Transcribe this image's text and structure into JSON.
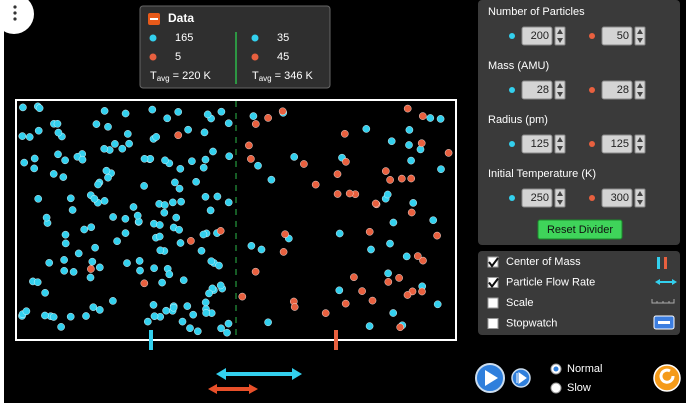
{
  "data_panel": {
    "title": "Data",
    "sides": [
      {
        "counts": [
          165,
          5
        ],
        "temperature": {
          "symbol": "T",
          "subscript": "avg",
          "text": "= 220 K"
        }
      },
      {
        "counts": [
          35,
          45
        ],
        "temperature": {
          "symbol": "T",
          "subscript": "avg",
          "text": "= 346 K"
        }
      }
    ]
  },
  "controls": [
    {
      "label": "Number of Particles",
      "values": [
        200,
        50
      ]
    },
    {
      "label": "Mass (AMU)",
      "values": [
        28,
        28
      ]
    },
    {
      "label": "Radius (pm)",
      "values": [
        125,
        125
      ]
    },
    {
      "label": "Initial Temperature (K)",
      "values": [
        250,
        300
      ]
    }
  ],
  "reset_button": "Reset Divider",
  "checkboxes": [
    {
      "label": "Center of Mass",
      "checked": true
    },
    {
      "label": "Particle Flow Rate",
      "checked": true
    },
    {
      "label": "Scale",
      "checked": false
    },
    {
      "label": "Stopwatch",
      "checked": false
    }
  ],
  "speed": {
    "options": [
      "Normal",
      "Slow"
    ],
    "selected": 0
  }
}
